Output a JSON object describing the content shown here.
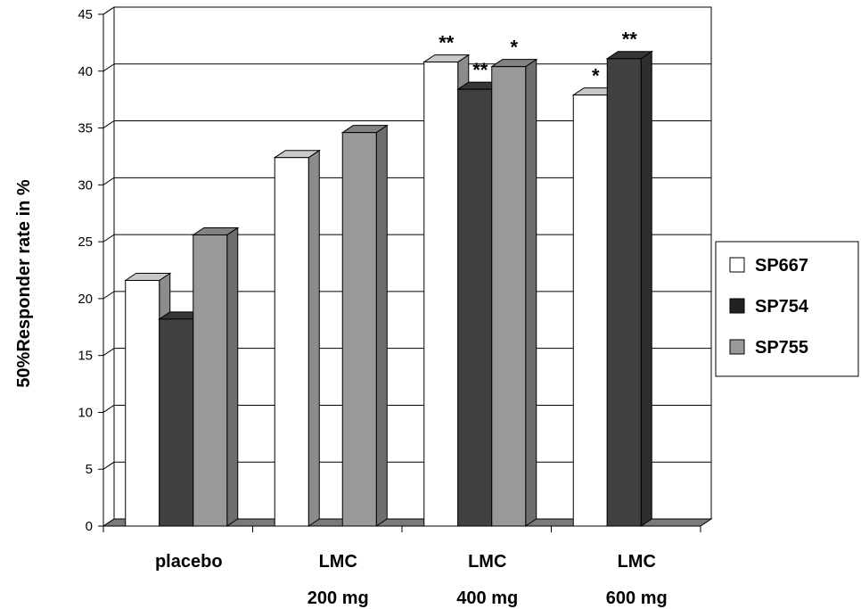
{
  "chart_data": {
    "type": "bar",
    "title": "",
    "xlabel": "",
    "ylabel": "50%Responder rate in %",
    "ylim": [
      0,
      45
    ],
    "yticks": [
      0,
      5,
      10,
      15,
      20,
      25,
      30,
      35,
      40,
      45
    ],
    "grid": true,
    "legend_position": "right",
    "categories": [
      {
        "line1": "placebo",
        "line2": ""
      },
      {
        "line1": "LMC",
        "line2": "200 mg"
      },
      {
        "line1": "LMC",
        "line2": "400 mg"
      },
      {
        "line1": "LMC",
        "line2": "600 mg"
      }
    ],
    "series": [
      {
        "name": "SP667",
        "color": "#ffffff",
        "values": [
          21.6,
          32.4,
          40.8,
          37.9
        ]
      },
      {
        "name": "SP754",
        "color": "#404040",
        "values": [
          18.2,
          null,
          38.4,
          41.1
        ]
      },
      {
        "name": "SP755",
        "color": "#999999",
        "values": [
          25.6,
          34.6,
          40.4,
          null
        ]
      }
    ],
    "annotations": [
      {
        "category": 2,
        "series": 0,
        "text": "**"
      },
      {
        "category": 2,
        "series": 1,
        "text": "**"
      },
      {
        "category": 2,
        "series": 2,
        "text": "*"
      },
      {
        "category": 3,
        "series": 0,
        "text": "*"
      },
      {
        "category": 3,
        "series": 1,
        "text": "**"
      }
    ]
  }
}
